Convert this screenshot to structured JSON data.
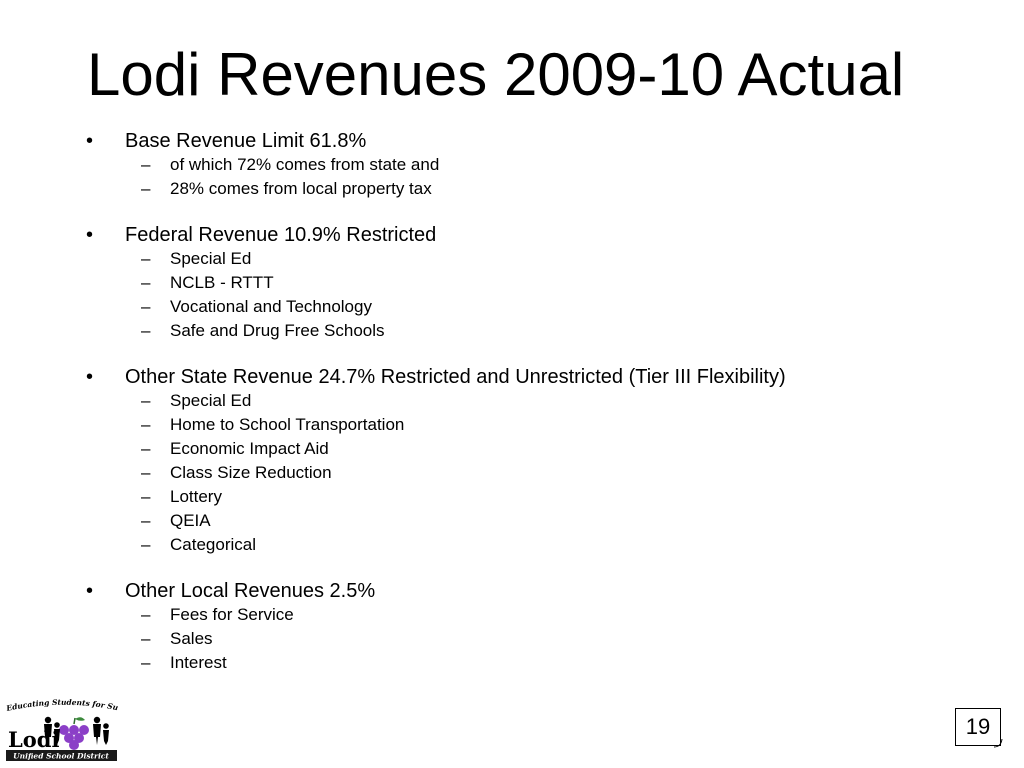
{
  "slide": {
    "title": "Lodi Revenues 2009-10 Actual",
    "page_number": "19"
  },
  "bullets": [
    {
      "text": "Base Revenue Limit 61.8%",
      "subitems": [
        "of which 72% comes from state and",
        "28% comes from local property tax"
      ]
    },
    {
      "text": "Federal Revenue 10.9% Restricted",
      "subitems": [
        "Special Ed",
        "NCLB - RTTT",
        "Vocational and Technology",
        "Safe and Drug Free Schools"
      ]
    },
    {
      "text": "Other State Revenue 24.7% Restricted and Unrestricted (Tier III Flexibility)",
      "subitems": [
        "Special Ed",
        "Home to School Transportation",
        "Economic Impact Aid",
        "Class Size Reduction",
        "Lottery",
        "QEIA",
        "Categorical"
      ]
    },
    {
      "text": "Other Local Revenues 2.5%",
      "subitems": [
        "Fees for Service",
        "Sales",
        "Interest"
      ]
    }
  ],
  "logo": {
    "tagline": "Educating Students for Success",
    "name": "Lodi",
    "subtitle": "Unified School District",
    "grape_color": "#8b3fc7",
    "band_color": "#1a1a1a"
  }
}
